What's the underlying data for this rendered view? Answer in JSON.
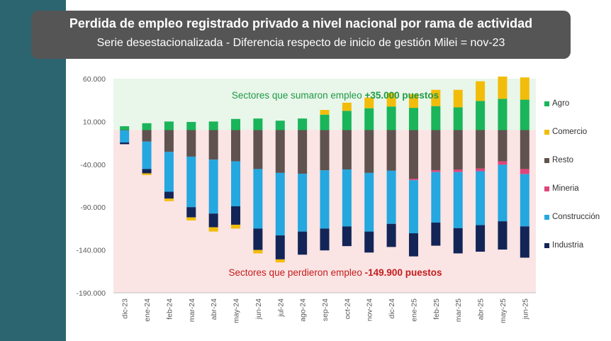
{
  "header": {
    "title": "Perdida de empleo registrado privado a nivel nacional por rama de actividad",
    "subtitle": "Serie desestacionalizada - Diferencia respecto de inicio de gestión Milei = nov-23"
  },
  "annotations": {
    "positive_prefix": "Sectores que sumaron empleo ",
    "positive_value": "+35.000 puestos",
    "negative_prefix": "Sectores que perdieron empleo ",
    "negative_value": "-149.900 puestos"
  },
  "colors": {
    "strip": "#2c6470",
    "positive_zone": "#e9f6ea",
    "negative_zone": "#fae4e4",
    "positive_text": "#1f9a45",
    "negative_text": "#c41c1c"
  },
  "chart_data": {
    "type": "bar",
    "stacked": true,
    "ylim": [
      -190000,
      60000
    ],
    "y_ticks": [
      "60.000",
      "10.000",
      "-40.000",
      "-90.000",
      "-140.000",
      "-190.000"
    ],
    "y_tick_values": [
      60000,
      10000,
      -40000,
      -90000,
      -140000,
      -190000
    ],
    "categories": [
      "dic-23",
      "ene-24",
      "feb-24",
      "mar-24",
      "abr-24",
      "may-24",
      "jun-24",
      "jul-24",
      "ago-24",
      "sep-24",
      "oct-24",
      "nov-24",
      "dic-24",
      "ene-25",
      "feb-25",
      "mar-25",
      "abr-25",
      "may-25",
      "jun-25"
    ],
    "series": [
      {
        "name": "Agro",
        "color": "#1ab55a",
        "values": [
          4500,
          8000,
          10000,
          9500,
          10000,
          13000,
          13500,
          11000,
          13500,
          18000,
          22500,
          25500,
          27500,
          26000,
          28000,
          26500,
          34000,
          36500,
          35500
        ]
      },
      {
        "name": "Comercio",
        "color": "#f2bd0a",
        "values": [
          0,
          0,
          0,
          0,
          0,
          0,
          0,
          0,
          0,
          5500,
          9500,
          12500,
          16000,
          16000,
          19000,
          20500,
          23000,
          26000,
          26000
        ]
      },
      {
        "name": "Resto",
        "color": "#5f524f",
        "values": [
          -500,
          -13500,
          -25500,
          -31000,
          -34500,
          -36500,
          -45500,
          -50000,
          -51000,
          -47000,
          -46000,
          -50000,
          -47500,
          -57000,
          -47000,
          -46000,
          -45000,
          -36500,
          -45500
        ]
      },
      {
        "name": "Mineria",
        "color": "#e0457b",
        "values": [
          0,
          0,
          0,
          0,
          0,
          0,
          0,
          0,
          0,
          0,
          0,
          0,
          0,
          -1500,
          -2000,
          -3000,
          -3000,
          -4000,
          -6000
        ]
      },
      {
        "name": "Construcción",
        "color": "#25a7df",
        "values": [
          -14000,
          -32000,
          -46500,
          -59000,
          -63000,
          -52500,
          -69500,
          -73000,
          -67500,
          -68000,
          -66500,
          -68500,
          -62000,
          -62000,
          -59000,
          -65500,
          -63000,
          -66000,
          -61000
        ]
      },
      {
        "name": "Industria",
        "color": "#132556",
        "values": [
          -2000,
          -5000,
          -8000,
          -12000,
          -16000,
          -21500,
          -25000,
          -28000,
          -27000,
          -25500,
          -23000,
          -24500,
          -27000,
          -27000,
          -27000,
          -29500,
          -31000,
          -33000,
          -36500
        ]
      }
    ],
    "extra_segments": [
      {
        "name": "",
        "color": "#f2bd0a",
        "values": [
          0,
          -2000,
          -3000,
          -3500,
          -5000,
          -4500,
          -4000,
          -3500,
          0,
          0,
          0,
          0,
          0,
          0,
          0,
          0,
          0,
          0,
          0
        ]
      }
    ]
  }
}
